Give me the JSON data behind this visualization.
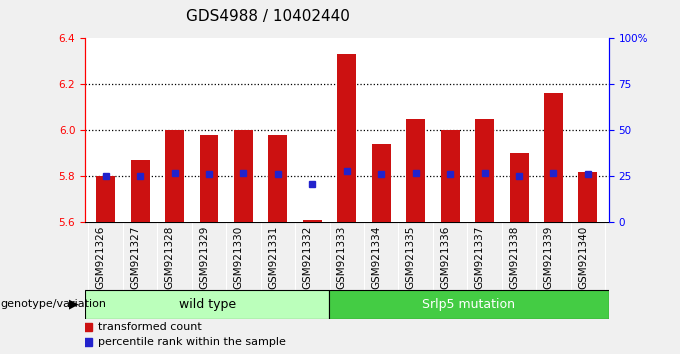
{
  "title": "GDS4988 / 10402440",
  "samples": [
    "GSM921326",
    "GSM921327",
    "GSM921328",
    "GSM921329",
    "GSM921330",
    "GSM921331",
    "GSM921332",
    "GSM921333",
    "GSM921334",
    "GSM921335",
    "GSM921336",
    "GSM921337",
    "GSM921338",
    "GSM921339",
    "GSM921340"
  ],
  "transformed_count": [
    5.8,
    5.87,
    6.0,
    5.98,
    6.0,
    5.98,
    5.61,
    6.33,
    5.94,
    6.05,
    6.0,
    6.05,
    5.9,
    6.16,
    5.82
  ],
  "percentile_rank": [
    25,
    25,
    27,
    26,
    27,
    26,
    21,
    28,
    26,
    27,
    26,
    27,
    25,
    27,
    26
  ],
  "y_min": 5.6,
  "y_max": 6.4,
  "y_ticks": [
    5.6,
    5.8,
    6.0,
    6.2,
    6.4
  ],
  "right_y_ticks": [
    0,
    25,
    50,
    75,
    100
  ],
  "right_y_labels": [
    "0",
    "25",
    "50",
    "75",
    "100%"
  ],
  "dotted_lines": [
    5.8,
    6.0,
    6.2
  ],
  "bar_color": "#cc1111",
  "dot_color": "#2222cc",
  "bar_bottom": 5.6,
  "wt_count": 7,
  "mut_count": 8,
  "wild_type_label": "wild type",
  "srlp5_label": "Srlp5 mutation",
  "genotype_label": "genotype/variation",
  "legend_red_label": "transformed count",
  "legend_blue_label": "percentile rank within the sample",
  "xticklabel_bg": "#cccccc",
  "plot_bg": "#ffffff",
  "fig_bg": "#f0f0f0",
  "wt_box_color": "#bbffbb",
  "mut_box_color": "#44cc44",
  "title_fontsize": 11,
  "tick_fontsize": 7.5,
  "bar_width": 0.55
}
